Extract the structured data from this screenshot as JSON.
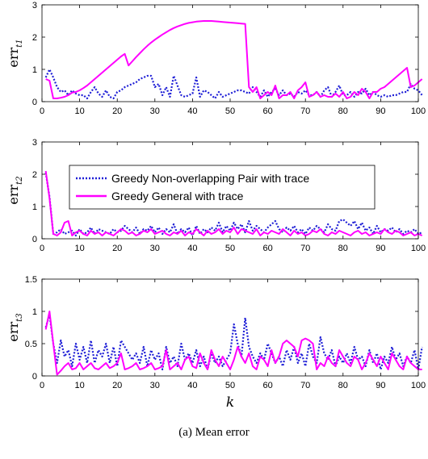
{
  "caption": "(a)  Mean error",
  "chart_data": [
    {
      "type": "line",
      "ylabel": "err",
      "ylabel_sub": "t1",
      "xlabel": "",
      "xlim": [
        0,
        100
      ],
      "ylim": [
        0,
        3
      ],
      "xticks": [
        0,
        10,
        20,
        30,
        40,
        50,
        60,
        70,
        80,
        90,
        100
      ],
      "yticks": [
        0,
        1,
        2,
        3
      ],
      "series": [
        {
          "color": "#1f1fd6",
          "style": "dotted",
          "values": [
            0.75,
            1.0,
            0.75,
            0.45,
            0.3,
            0.35,
            0.2,
            0.35,
            0.25,
            0.2,
            0.2,
            0.1,
            0.3,
            0.45,
            0.25,
            0.15,
            0.35,
            0.15,
            0.1,
            0.3,
            0.35,
            0.45,
            0.5,
            0.55,
            0.6,
            0.7,
            0.75,
            0.8,
            0.8,
            0.45,
            0.55,
            0.2,
            0.45,
            0.15,
            0.8,
            0.5,
            0.2,
            0.15,
            0.2,
            0.25,
            0.75,
            0.15,
            0.35,
            0.3,
            0.2,
            0.1,
            0.3,
            0.15,
            0.2,
            0.25,
            0.3,
            0.35,
            0.35,
            0.3,
            0.25,
            0.45,
            0.3,
            0.15,
            0.35,
            0.15,
            0.3,
            0.4,
            0.2,
            0.35,
            0.2,
            0.25,
            0.15,
            0.3,
            0.25,
            0.35,
            0.2,
            0.2,
            0.3,
            0.15,
            0.35,
            0.45,
            0.15,
            0.3,
            0.5,
            0.2,
            0.2,
            0.3,
            0.15,
            0.3,
            0.25,
            0.4,
            0.2,
            0.3,
            0.2,
            0.15,
            0.2,
            0.15,
            0.2,
            0.2,
            0.25,
            0.3,
            0.3,
            0.55,
            0.4,
            0.35,
            0.2
          ]
        },
        {
          "color": "#ff00ff",
          "style": "solid",
          "values": [
            0.7,
            0.65,
            0.1,
            0.1,
            0.12,
            0.15,
            0.2,
            0.28,
            0.3,
            0.35,
            0.42,
            0.5,
            0.6,
            0.7,
            0.8,
            0.9,
            1.0,
            1.1,
            1.2,
            1.3,
            1.4,
            1.48,
            1.12,
            1.25,
            1.38,
            1.5,
            1.62,
            1.73,
            1.83,
            1.92,
            2.0,
            2.08,
            2.15,
            2.22,
            2.28,
            2.33,
            2.37,
            2.41,
            2.44,
            2.46,
            2.48,
            2.49,
            2.5,
            2.5,
            2.5,
            2.49,
            2.48,
            2.47,
            2.46,
            2.45,
            2.44,
            2.43,
            2.42,
            2.41,
            0.45,
            0.3,
            0.45,
            0.1,
            0.2,
            0.3,
            0.2,
            0.5,
            0.1,
            0.2,
            0.2,
            0.3,
            0.1,
            0.35,
            0.45,
            0.6,
            0.15,
            0.2,
            0.3,
            0.15,
            0.2,
            0.15,
            0.15,
            0.25,
            0.15,
            0.3,
            0.1,
            0.15,
            0.3,
            0.2,
            0.4,
            0.3,
            0.1,
            0.3,
            0.3,
            0.4,
            0.45,
            0.55,
            0.65,
            0.75,
            0.85,
            0.95,
            1.05,
            0.45,
            0.5,
            0.6,
            0.7
          ]
        }
      ]
    },
    {
      "type": "line",
      "ylabel": "err",
      "ylabel_sub": "t2",
      "xlabel": "",
      "xlim": [
        0,
        100
      ],
      "ylim": [
        0,
        3
      ],
      "xticks": [
        0,
        10,
        20,
        30,
        40,
        50,
        60,
        70,
        80,
        90,
        100
      ],
      "yticks": [
        0,
        1,
        2,
        3
      ],
      "legend": {
        "placement": "upper-left",
        "entries": [
          "Greedy Non-overlapping Pair with trace",
          "Greedy General with trace"
        ]
      },
      "series": [
        {
          "name": "Greedy Non-overlapping Pair with trace",
          "color": "#1f1fd6",
          "style": "dotted",
          "values": [
            2.05,
            1.3,
            0.15,
            0.2,
            0.3,
            0.15,
            0.2,
            0.25,
            0.1,
            0.3,
            0.15,
            0.2,
            0.35,
            0.15,
            0.3,
            0.25,
            0.2,
            0.15,
            0.3,
            0.2,
            0.25,
            0.4,
            0.3,
            0.2,
            0.35,
            0.15,
            0.3,
            0.25,
            0.4,
            0.2,
            0.35,
            0.15,
            0.3,
            0.2,
            0.45,
            0.15,
            0.3,
            0.2,
            0.35,
            0.1,
            0.4,
            0.15,
            0.3,
            0.2,
            0.35,
            0.25,
            0.5,
            0.2,
            0.4,
            0.25,
            0.5,
            0.3,
            0.45,
            0.2,
            0.55,
            0.25,
            0.4,
            0.3,
            0.2,
            0.35,
            0.45,
            0.55,
            0.3,
            0.2,
            0.35,
            0.25,
            0.4,
            0.2,
            0.3,
            0.15,
            0.35,
            0.25,
            0.4,
            0.3,
            0.2,
            0.45,
            0.3,
            0.25,
            0.55,
            0.6,
            0.5,
            0.4,
            0.55,
            0.3,
            0.5,
            0.25,
            0.35,
            0.15,
            0.4,
            0.2,
            0.3,
            0.25,
            0.35,
            0.2,
            0.3,
            0.15,
            0.25,
            0.2,
            0.3,
            0.15,
            0.2
          ]
        },
        {
          "name": "Greedy General with trace",
          "color": "#ff00ff",
          "style": "solid",
          "values": [
            2.1,
            1.25,
            0.15,
            0.1,
            0.2,
            0.5,
            0.55,
            0.1,
            0.2,
            0.25,
            0.15,
            0.1,
            0.25,
            0.15,
            0.2,
            0.1,
            0.2,
            0.15,
            0.1,
            0.2,
            0.3,
            0.25,
            0.15,
            0.2,
            0.1,
            0.15,
            0.25,
            0.2,
            0.3,
            0.15,
            0.2,
            0.25,
            0.15,
            0.1,
            0.2,
            0.15,
            0.25,
            0.1,
            0.2,
            0.15,
            0.3,
            0.2,
            0.1,
            0.25,
            0.15,
            0.2,
            0.3,
            0.15,
            0.25,
            0.2,
            0.35,
            0.15,
            0.3,
            0.25,
            0.2,
            0.15,
            0.3,
            0.1,
            0.2,
            0.15,
            0.25,
            0.2,
            0.15,
            0.3,
            0.2,
            0.1,
            0.25,
            0.15,
            0.2,
            0.1,
            0.15,
            0.25,
            0.2,
            0.3,
            0.15,
            0.1,
            0.2,
            0.15,
            0.25,
            0.2,
            0.15,
            0.1,
            0.2,
            0.25,
            0.15,
            0.2,
            0.1,
            0.15,
            0.2,
            0.15,
            0.3,
            0.2,
            0.15,
            0.25,
            0.2,
            0.1,
            0.15,
            0.2,
            0.1,
            0.15,
            0.1
          ]
        }
      ]
    },
    {
      "type": "line",
      "ylabel": "err",
      "ylabel_sub": "t3",
      "xlabel": "k",
      "xlim": [
        0,
        100
      ],
      "ylim": [
        0,
        1.5
      ],
      "xticks": [
        0,
        10,
        20,
        30,
        40,
        50,
        60,
        70,
        80,
        90,
        100
      ],
      "yticks": [
        0,
        0.5,
        1,
        1.5
      ],
      "series": [
        {
          "color": "#1f1fd6",
          "style": "dotted",
          "values": [
            0.75,
            0.95,
            0.5,
            0.2,
            0.55,
            0.3,
            0.4,
            0.15,
            0.5,
            0.25,
            0.45,
            0.2,
            0.55,
            0.2,
            0.4,
            0.3,
            0.5,
            0.2,
            0.45,
            0.15,
            0.55,
            0.45,
            0.35,
            0.25,
            0.35,
            0.2,
            0.45,
            0.15,
            0.4,
            0.25,
            0.35,
            0.1,
            0.45,
            0.2,
            0.3,
            0.15,
            0.5,
            0.25,
            0.35,
            0.2,
            0.4,
            0.15,
            0.3,
            0.1,
            0.35,
            0.2,
            0.3,
            0.15,
            0.25,
            0.35,
            0.8,
            0.5,
            0.3,
            0.9,
            0.45,
            0.3,
            0.2,
            0.35,
            0.25,
            0.5,
            0.35,
            0.2,
            0.3,
            0.15,
            0.4,
            0.25,
            0.45,
            0.2,
            0.35,
            0.15,
            0.5,
            0.3,
            0.2,
            0.6,
            0.35,
            0.25,
            0.4,
            0.15,
            0.3,
            0.2,
            0.35,
            0.2,
            0.45,
            0.25,
            0.3,
            0.15,
            0.4,
            0.2,
            0.35,
            0.1,
            0.3,
            0.2,
            0.45,
            0.25,
            0.35,
            0.15,
            0.3,
            0.2,
            0.4,
            0.1,
            0.45
          ]
        },
        {
          "color": "#ff00ff",
          "style": "solid",
          "values": [
            0.72,
            1.0,
            0.5,
            0.02,
            0.08,
            0.15,
            0.2,
            0.1,
            0.12,
            0.2,
            0.1,
            0.15,
            0.2,
            0.12,
            0.1,
            0.15,
            0.2,
            0.12,
            0.15,
            0.2,
            0.35,
            0.1,
            0.12,
            0.15,
            0.2,
            0.1,
            0.12,
            0.15,
            0.2,
            0.1,
            0.12,
            0.15,
            0.4,
            0.1,
            0.15,
            0.2,
            0.1,
            0.25,
            0.3,
            0.15,
            0.12,
            0.35,
            0.2,
            0.1,
            0.4,
            0.25,
            0.15,
            0.3,
            0.2,
            0.1,
            0.25,
            0.45,
            0.3,
            0.2,
            0.35,
            0.15,
            0.1,
            0.3,
            0.25,
            0.15,
            0.4,
            0.2,
            0.3,
            0.5,
            0.55,
            0.5,
            0.45,
            0.3,
            0.55,
            0.58,
            0.55,
            0.5,
            0.1,
            0.2,
            0.15,
            0.3,
            0.2,
            0.15,
            0.4,
            0.3,
            0.2,
            0.15,
            0.3,
            0.25,
            0.1,
            0.2,
            0.35,
            0.25,
            0.15,
            0.3,
            0.2,
            0.1,
            0.35,
            0.25,
            0.15,
            0.1,
            0.3,
            0.2,
            0.15,
            0.1,
            0.1
          ]
        }
      ]
    }
  ]
}
